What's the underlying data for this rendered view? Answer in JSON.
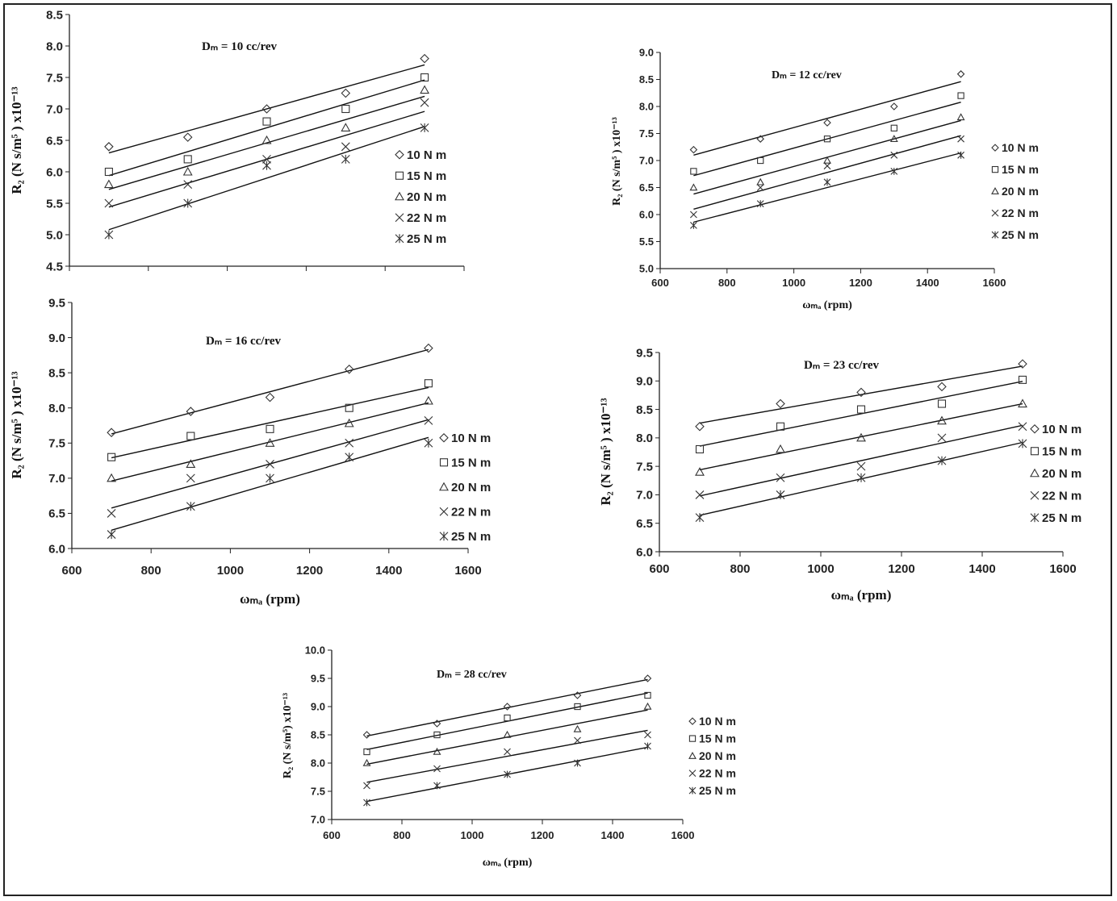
{
  "chart_data": [
    {
      "type": "scatter",
      "title": "Dₘ = 10 cc/rev",
      "ylabel": "R₂ (N s/m⁵ ) x10⁻¹³",
      "xlabel": "",
      "x": [
        700,
        900,
        1100,
        1300,
        1500
      ],
      "xlim": [
        600,
        1600
      ],
      "ylim": [
        4.5,
        8.5
      ],
      "xticks": [],
      "yticks": [
        "4.5",
        "5.0",
        "5.5",
        "6.0",
        "6.5",
        "7.0",
        "7.5",
        "8.0",
        "8.5"
      ],
      "legend": "right",
      "series": [
        {
          "name": "10 N m",
          "marker": "diamond",
          "values": [
            6.4,
            6.55,
            7.0,
            7.25,
            7.8
          ]
        },
        {
          "name": "15 N m",
          "marker": "square",
          "values": [
            6.0,
            6.2,
            6.8,
            7.0,
            7.5
          ]
        },
        {
          "name": "20 N m",
          "marker": "triangle",
          "values": [
            5.8,
            6.0,
            6.5,
            6.7,
            7.3
          ]
        },
        {
          "name": "22 N m",
          "marker": "x",
          "values": [
            5.5,
            5.8,
            6.2,
            6.4,
            7.1
          ]
        },
        {
          "name": "25 N m",
          "marker": "star",
          "values": [
            5.0,
            5.5,
            6.1,
            6.2,
            6.7
          ]
        }
      ]
    },
    {
      "type": "scatter",
      "title": "Dₘ = 12 cc/rev",
      "ylabel": "R₂ (N s/m⁵ ) x10⁻¹³",
      "xlabel": "ωₘₐ (rpm)",
      "x": [
        700,
        900,
        1100,
        1300,
        1500
      ],
      "xlim": [
        600,
        1600
      ],
      "ylim": [
        5.0,
        9.0
      ],
      "xticks": [
        "600",
        "800",
        "1000",
        "1200",
        "1400",
        "1600"
      ],
      "yticks": [
        "5.0",
        "5.5",
        "6.0",
        "6.5",
        "7.0",
        "7.5",
        "8.0",
        "8.5",
        "9.0"
      ],
      "legend": "right",
      "series": [
        {
          "name": "10 N m",
          "marker": "diamond",
          "values": [
            7.2,
            7.4,
            7.7,
            8.0,
            8.6
          ]
        },
        {
          "name": "15 N m",
          "marker": "square",
          "values": [
            6.8,
            7.0,
            7.4,
            7.6,
            8.2
          ]
        },
        {
          "name": "20 N m",
          "marker": "triangle",
          "values": [
            6.5,
            6.6,
            7.0,
            7.4,
            7.8
          ]
        },
        {
          "name": "22 N m",
          "marker": "x",
          "values": [
            6.0,
            6.5,
            6.9,
            7.1,
            7.4
          ]
        },
        {
          "name": "25 N m",
          "marker": "star",
          "values": [
            5.8,
            6.2,
            6.6,
            6.8,
            7.1
          ]
        }
      ]
    },
    {
      "type": "scatter",
      "title": "Dₘ = 16 cc/rev",
      "ylabel": "R₂ (N s/m⁵ ) x10⁻¹³",
      "xlabel": "ωₘₐ (rpm)",
      "x": [
        700,
        900,
        1100,
        1300,
        1500
      ],
      "xlim": [
        600,
        1600
      ],
      "ylim": [
        6.0,
        9.5
      ],
      "xticks": [
        "600",
        "800",
        "1000",
        "1200",
        "1400",
        "1600"
      ],
      "yticks": [
        "6.0",
        "6.5",
        "7.0",
        "7.5",
        "8.0",
        "8.5",
        "9.0",
        "9.5"
      ],
      "legend": "right",
      "series": [
        {
          "name": "10 N m",
          "marker": "diamond",
          "values": [
            7.65,
            7.95,
            8.15,
            8.55,
            8.85
          ]
        },
        {
          "name": "15 N m",
          "marker": "square",
          "values": [
            7.3,
            7.6,
            7.7,
            8.0,
            8.35
          ]
        },
        {
          "name": "20 N m",
          "marker": "triangle",
          "values": [
            7.0,
            7.2,
            7.5,
            7.78,
            8.1
          ]
        },
        {
          "name": "22 N m",
          "marker": "x",
          "values": [
            6.5,
            7.0,
            7.2,
            7.5,
            7.82
          ]
        },
        {
          "name": "25 N m",
          "marker": "star",
          "values": [
            6.2,
            6.6,
            7.0,
            7.3,
            7.5
          ]
        }
      ]
    },
    {
      "type": "scatter",
      "title": "Dₘ = 23 cc/rev",
      "ylabel": "R₂ (N s/m⁵ ) x10⁻¹³",
      "xlabel": "ωₘₐ (rpm)",
      "x": [
        700,
        900,
        1100,
        1300,
        1500
      ],
      "xlim": [
        600,
        1600
      ],
      "ylim": [
        6.0,
        9.5
      ],
      "xticks": [
        "600",
        "800",
        "1000",
        "1200",
        "1400",
        "1600"
      ],
      "yticks": [
        "6.0",
        "6.5",
        "7.0",
        "7.5",
        "8.0",
        "8.5",
        "9.0",
        "9.5"
      ],
      "legend": "right",
      "series": [
        {
          "name": "10 N m",
          "marker": "diamond",
          "values": [
            8.2,
            8.6,
            8.8,
            8.9,
            9.3
          ]
        },
        {
          "name": "15 N m",
          "marker": "square",
          "values": [
            7.8,
            8.2,
            8.5,
            8.6,
            9.02
          ]
        },
        {
          "name": "20 N m",
          "marker": "triangle",
          "values": [
            7.4,
            7.8,
            8.0,
            8.3,
            8.6
          ]
        },
        {
          "name": "22 N m",
          "marker": "x",
          "values": [
            7.0,
            7.3,
            7.5,
            8.0,
            8.2
          ]
        },
        {
          "name": "25 N m",
          "marker": "star",
          "values": [
            6.6,
            7.0,
            7.3,
            7.6,
            7.9
          ]
        }
      ]
    },
    {
      "type": "scatter",
      "title": "Dₘ = 28 cc/rev",
      "ylabel": "R₂ (N s/m⁵) x10⁻¹³",
      "xlabel": "ωₘₐ (rpm)",
      "x": [
        700,
        900,
        1100,
        1300,
        1500
      ],
      "xlim": [
        600,
        1600
      ],
      "ylim": [
        7.0,
        10.0
      ],
      "xticks": [
        "600",
        "800",
        "1000",
        "1200",
        "1400",
        "1600"
      ],
      "yticks": [
        "7.0",
        "7.5",
        "8.0",
        "8.5",
        "9.0",
        "9.5",
        "10.0"
      ],
      "legend": "right",
      "series": [
        {
          "name": "10 N m",
          "marker": "diamond",
          "values": [
            8.5,
            8.7,
            9.0,
            9.2,
            9.5
          ]
        },
        {
          "name": "15 N m",
          "marker": "square",
          "values": [
            8.2,
            8.5,
            8.8,
            9.0,
            9.2
          ]
        },
        {
          "name": "20 N m",
          "marker": "triangle",
          "values": [
            8.0,
            8.2,
            8.5,
            8.6,
            9.0
          ]
        },
        {
          "name": "22 N m",
          "marker": "x",
          "values": [
            7.6,
            7.9,
            8.2,
            8.4,
            8.5
          ]
        },
        {
          "name": "25 N m",
          "marker": "star",
          "values": [
            7.3,
            7.6,
            7.8,
            8.0,
            8.3
          ]
        }
      ]
    }
  ]
}
